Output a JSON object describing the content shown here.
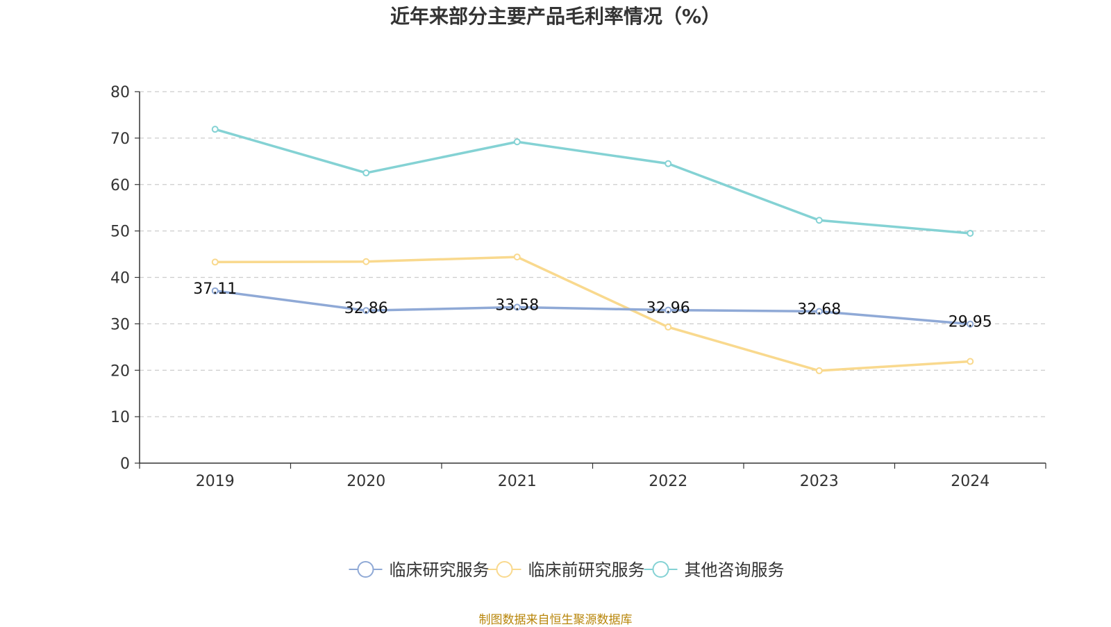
{
  "chart_data": {
    "type": "line",
    "title": "近年来部分主要产品毛利率情况（%）",
    "categories": [
      "2019",
      "2020",
      "2021",
      "2022",
      "2023",
      "2024"
    ],
    "ylim": [
      0,
      80
    ],
    "yticks": [
      0,
      10,
      20,
      30,
      40,
      50,
      60,
      70,
      80
    ],
    "grid": true,
    "legend_position": "bottom",
    "series": [
      {
        "name": "临床研究服务",
        "color": "#8fa9d6",
        "values": [
          37.11,
          32.86,
          33.58,
          32.96,
          32.68,
          29.95
        ],
        "show_labels": true
      },
      {
        "name": "临床前研究服务",
        "color": "#f9d98e",
        "values": [
          43.3,
          43.4,
          44.4,
          29.3,
          19.9,
          21.9
        ],
        "show_labels": false
      },
      {
        "name": "其他咨询服务",
        "color": "#84d2d4",
        "values": [
          71.9,
          62.5,
          69.2,
          64.5,
          52.3,
          49.5
        ],
        "show_labels": false
      }
    ],
    "source": "制图数据来自恒生聚源数据库"
  }
}
